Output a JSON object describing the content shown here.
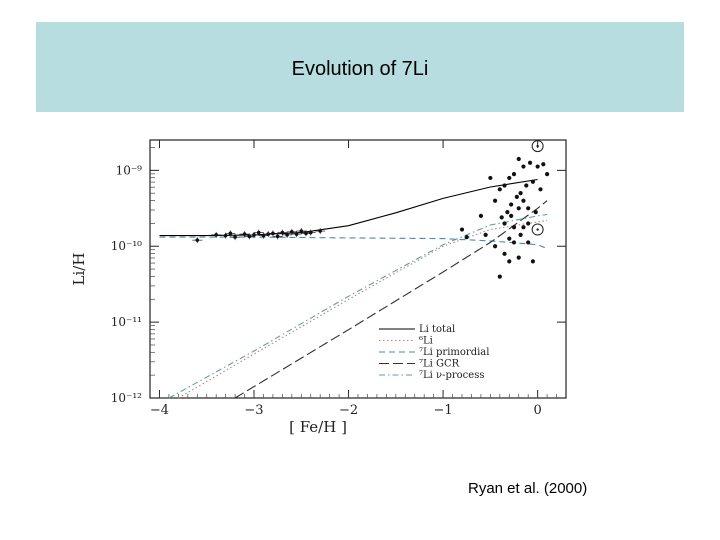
{
  "slide": {
    "title": "Evolution of 7Li",
    "credit": "Ryan et al.  (2000)"
  },
  "colors": {
    "title_band": "#b7dde0",
    "total": "#000000",
    "li6": "#c08080",
    "primordial": "#4a8ab0",
    "gcr": "#303030",
    "nu_process": "#5aa0a0"
  },
  "chart_data": {
    "type": "scatter",
    "xlabel": "[ Fe/H ]",
    "ylabel": "Li/H",
    "x_ticks": [
      "−4",
      "−3",
      "−2",
      "−1",
      "0"
    ],
    "y_ticks": [
      "10⁻⁹",
      "10⁻¹⁰",
      "10⁻¹¹",
      "10⁻¹²"
    ],
    "xlim": [
      -4.1,
      0.3
    ],
    "ylim_log10": [
      -12,
      -8.6
    ],
    "legend": {
      "position": "bottom-right",
      "entries": [
        "Li total",
        "⁶Li",
        "⁷Li primordial",
        "⁷Li GCR",
        "⁷Li ν-process"
      ]
    },
    "series": [
      {
        "name": "Li total",
        "style": "solid",
        "x": [
          -4.0,
          -3.5,
          -3.0,
          -2.5,
          -2.0,
          -1.5,
          -1.0,
          -0.5,
          0.0
        ],
        "y": [
          -9.86,
          -9.86,
          -9.85,
          -9.82,
          -9.73,
          -9.56,
          -9.37,
          -9.22,
          -9.12
        ]
      },
      {
        "name": "⁶Li",
        "style": "dotted",
        "x": [
          -3.8,
          -3.0,
          -2.0,
          -1.0,
          -0.5,
          0.1
        ],
        "y": [
          -12.0,
          -11.42,
          -10.7,
          -10.0,
          -9.78,
          -9.66
        ]
      },
      {
        "name": "⁷Li primordial",
        "style": "dashed",
        "x": [
          -4.0,
          -3.0,
          -2.0,
          -1.0,
          -0.5,
          0.0,
          0.1
        ],
        "y": [
          -9.88,
          -9.88,
          -9.89,
          -9.9,
          -9.93,
          -9.98,
          -10.03
        ]
      },
      {
        "name": "⁷Li GCR",
        "style": "longdash",
        "x": [
          -3.2,
          -2.0,
          -1.0,
          -0.5,
          0.0,
          0.1
        ],
        "y": [
          -12.0,
          -11.1,
          -10.34,
          -9.95,
          -9.5,
          -9.4
        ]
      },
      {
        "name": "⁷Li ν-process",
        "style": "dashdot",
        "x": [
          -3.9,
          -3.0,
          -2.0,
          -1.0,
          -0.5,
          0.0,
          0.1
        ],
        "y": [
          -12.0,
          -11.38,
          -10.66,
          -9.98,
          -9.72,
          -9.6,
          -9.58
        ]
      }
    ],
    "points_halo": {
      "x": [
        -3.4,
        -3.3,
        -3.25,
        -3.2,
        -3.1,
        -3.05,
        -3.0,
        -2.95,
        -2.9,
        -2.85,
        -2.8,
        -2.75,
        -2.7,
        -2.65,
        -2.6,
        -2.55,
        -2.5,
        -2.45,
        -2.4,
        -2.3,
        -3.6
      ],
      "y": [
        -9.85,
        -9.86,
        -9.83,
        -9.88,
        -9.84,
        -9.87,
        -9.85,
        -9.82,
        -9.86,
        -9.84,
        -9.83,
        -9.87,
        -9.82,
        -9.85,
        -9.81,
        -9.84,
        -9.8,
        -9.83,
        -9.82,
        -9.8,
        -9.92
      ]
    },
    "points_disk": {
      "x": [
        -0.8,
        -0.75,
        -0.6,
        -0.55,
        -0.5,
        -0.45,
        -0.4,
        -0.38,
        -0.35,
        -0.32,
        -0.3,
        -0.28,
        -0.25,
        -0.22,
        -0.2,
        -0.18,
        -0.15,
        -0.12,
        -0.1,
        -0.08,
        -0.05,
        -0.02,
        0.0,
        0.03,
        0.06,
        0.1,
        -0.4,
        -0.3,
        -0.25,
        -0.2,
        -0.15,
        -0.1,
        -0.05,
        -0.35,
        -0.3,
        -0.2,
        -0.1,
        -0.28,
        -0.18,
        -0.45,
        -0.35,
        -0.25,
        -0.15
      ],
      "y": [
        -9.78,
        -9.88,
        -9.6,
        -9.85,
        -9.1,
        -9.4,
        -9.25,
        -9.62,
        -9.2,
        -9.55,
        -9.1,
        -9.45,
        -9.05,
        -9.35,
        -8.85,
        -9.3,
        -8.95,
        -9.2,
        -9.5,
        -8.9,
        -9.15,
        -9.55,
        -8.95,
        -9.25,
        -8.92,
        -9.05,
        -10.4,
        -10.2,
        -9.95,
        -10.15,
        -9.75,
        -9.95,
        -10.2,
        -9.7,
        -9.9,
        -9.5,
        -9.7,
        -9.6,
        -9.85,
        -10.0,
        -10.1,
        -9.75,
        -9.4
      ]
    },
    "points_sun": {
      "x": [
        0.0,
        0.0
      ],
      "y": [
        -8.68,
        -9.78
      ]
    }
  }
}
